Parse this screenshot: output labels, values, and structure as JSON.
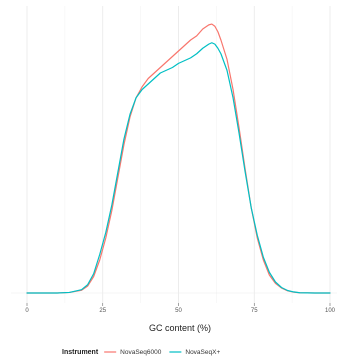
{
  "chart_data": {
    "type": "line",
    "xlabel": "GC content (%)",
    "ylabel": "",
    "xlim": [
      0,
      100
    ],
    "ylim": [
      0,
      1
    ],
    "grid": true,
    "xticks": [
      {
        "value": 0,
        "label": "0"
      },
      {
        "value": 25,
        "label": "25"
      },
      {
        "value": 50,
        "label": "50"
      },
      {
        "value": 75,
        "label": "75"
      },
      {
        "value": 100,
        "label": "100"
      }
    ],
    "legend": {
      "position": "bottom",
      "title": "Instrument"
    },
    "series": [
      {
        "name": "NovaSeq6000",
        "color": "#f8766d",
        "points": [
          [
            0,
            0
          ],
          [
            5,
            0
          ],
          [
            10,
            0
          ],
          [
            14,
            0.002
          ],
          [
            18,
            0.01
          ],
          [
            20,
            0.025
          ],
          [
            22,
            0.06
          ],
          [
            24,
            0.12
          ],
          [
            26,
            0.2
          ],
          [
            28,
            0.3
          ],
          [
            30,
            0.42
          ],
          [
            32,
            0.54
          ],
          [
            34,
            0.64
          ],
          [
            36,
            0.71
          ],
          [
            38,
            0.75
          ],
          [
            40,
            0.78
          ],
          [
            42,
            0.8
          ],
          [
            44,
            0.82
          ],
          [
            46,
            0.84
          ],
          [
            48,
            0.86
          ],
          [
            50,
            0.88
          ],
          [
            52,
            0.9
          ],
          [
            54,
            0.92
          ],
          [
            56,
            0.935
          ],
          [
            58,
            0.96
          ],
          [
            60,
            0.975
          ],
          [
            61,
            0.978
          ],
          [
            62,
            0.97
          ],
          [
            63,
            0.95
          ],
          [
            64,
            0.92
          ],
          [
            66,
            0.85
          ],
          [
            68,
            0.74
          ],
          [
            70,
            0.6
          ],
          [
            72,
            0.45
          ],
          [
            74,
            0.31
          ],
          [
            76,
            0.2
          ],
          [
            78,
            0.12
          ],
          [
            80,
            0.065
          ],
          [
            82,
            0.035
          ],
          [
            84,
            0.018
          ],
          [
            86,
            0.008
          ],
          [
            88,
            0.003
          ],
          [
            90,
            0.001
          ],
          [
            95,
            0
          ],
          [
            100,
            0
          ]
        ]
      },
      {
        "name": "NovaSeqX+",
        "color": "#00bfc4",
        "points": [
          [
            0,
            0
          ],
          [
            5,
            0
          ],
          [
            10,
            0
          ],
          [
            14,
            0.002
          ],
          [
            18,
            0.012
          ],
          [
            20,
            0.03
          ],
          [
            22,
            0.07
          ],
          [
            24,
            0.14
          ],
          [
            26,
            0.22
          ],
          [
            28,
            0.32
          ],
          [
            30,
            0.44
          ],
          [
            32,
            0.56
          ],
          [
            34,
            0.65
          ],
          [
            36,
            0.71
          ],
          [
            38,
            0.74
          ],
          [
            40,
            0.76
          ],
          [
            42,
            0.78
          ],
          [
            44,
            0.8
          ],
          [
            46,
            0.81
          ],
          [
            48,
            0.82
          ],
          [
            50,
            0.835
          ],
          [
            52,
            0.845
          ],
          [
            54,
            0.855
          ],
          [
            56,
            0.87
          ],
          [
            58,
            0.89
          ],
          [
            60,
            0.905
          ],
          [
            61,
            0.91
          ],
          [
            62,
            0.905
          ],
          [
            63,
            0.89
          ],
          [
            64,
            0.87
          ],
          [
            66,
            0.81
          ],
          [
            68,
            0.71
          ],
          [
            70,
            0.58
          ],
          [
            72,
            0.44
          ],
          [
            74,
            0.31
          ],
          [
            76,
            0.21
          ],
          [
            78,
            0.13
          ],
          [
            80,
            0.075
          ],
          [
            82,
            0.04
          ],
          [
            84,
            0.02
          ],
          [
            86,
            0.009
          ],
          [
            88,
            0.004
          ],
          [
            90,
            0.001
          ],
          [
            95,
            0
          ],
          [
            100,
            0
          ]
        ]
      }
    ]
  }
}
